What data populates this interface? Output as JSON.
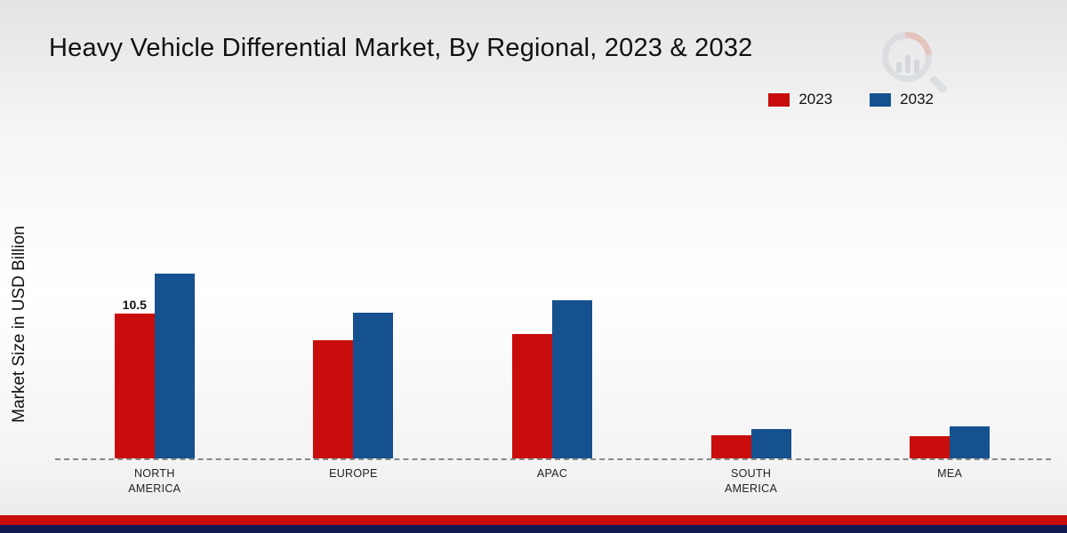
{
  "page": {
    "title": "Heavy Vehicle Differential Market, By Regional, 2023 & 2032",
    "ylabel": "Market Size in USD Billion"
  },
  "legend": [
    {
      "label": "2023",
      "color": "#c90d0d"
    },
    {
      "label": "2032",
      "color": "#15518e"
    }
  ],
  "chart_data": {
    "type": "bar",
    "title": "Heavy Vehicle Differential Market, By Regional, 2023 & 2032",
    "ylabel": "Market Size in USD Billion",
    "xlabel": "",
    "categories": [
      "NORTH AMERICA",
      "EUROPE",
      "APAC",
      "SOUTH AMERICA",
      "MEA"
    ],
    "series": [
      {
        "name": "2023",
        "color": "#c90d0d",
        "values": [
          10.5,
          8.6,
          9.0,
          1.7,
          1.6
        ]
      },
      {
        "name": "2032",
        "color": "#15518e",
        "values": [
          13.4,
          10.6,
          11.5,
          2.1,
          2.3
        ]
      }
    ],
    "annotations": [
      {
        "category": "NORTH AMERICA",
        "series": "2023",
        "text": "10.5"
      }
    ],
    "ylim": [
      0,
      14
    ],
    "axis_line": "dashed",
    "grid": false,
    "legend_position": "top-right"
  },
  "footer": {
    "red_strip_color": "#c90d0d",
    "navy_strip_color": "#121a52"
  }
}
